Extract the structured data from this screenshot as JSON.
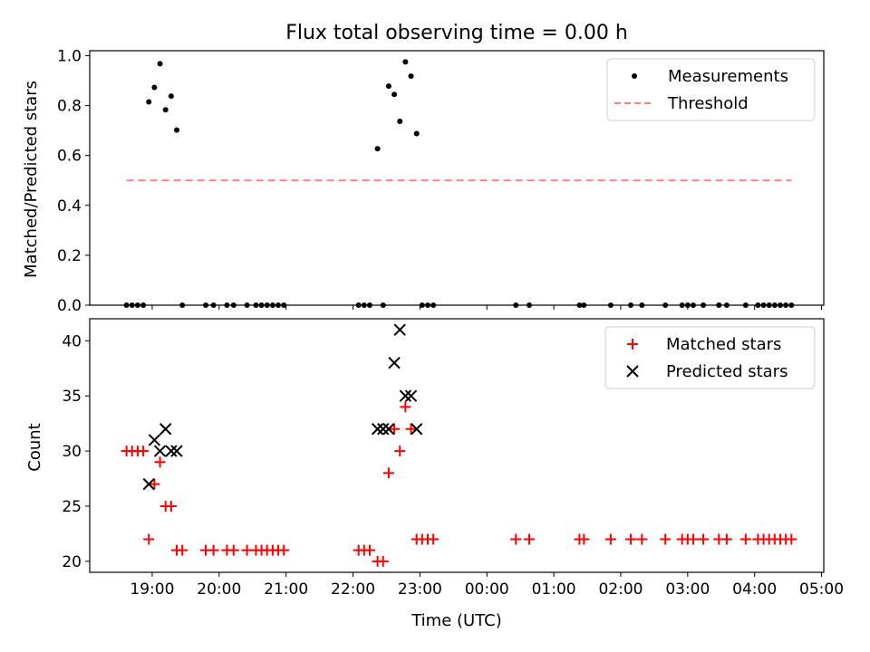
{
  "chart_data": [
    {
      "type": "scatter",
      "title": "Flux total observing time = 0.00 h",
      "xlabel": "",
      "ylabel": "Matched/Predicted stars",
      "ylim": [
        0.0,
        1.02
      ],
      "yticks": [
        0.0,
        0.2,
        0.4,
        0.6,
        0.8,
        1.0
      ],
      "ytick_labels": [
        "0.0",
        "0.2",
        "0.4",
        "0.6",
        "0.8",
        "1.0"
      ],
      "legend_position": "top-right",
      "series": [
        {
          "name": "Measurements",
          "marker": "dot",
          "color": "#000000",
          "points": [
            [
              "18:37",
              0.0
            ],
            [
              "18:42",
              0.0
            ],
            [
              "18:47",
              0.0
            ],
            [
              "18:52",
              0.0
            ],
            [
              "18:57",
              0.815
            ],
            [
              "19:02",
              0.873
            ],
            [
              "19:07",
              0.968
            ],
            [
              "19:12",
              0.783
            ],
            [
              "19:17",
              0.838
            ],
            [
              "19:22",
              0.702
            ],
            [
              "19:27",
              0.0
            ],
            [
              "19:48",
              0.0
            ],
            [
              "19:55",
              0.0
            ],
            [
              "20:07",
              0.0
            ],
            [
              "20:13",
              0.0
            ],
            [
              "20:25",
              0.0
            ],
            [
              "20:33",
              0.0
            ],
            [
              "20:38",
              0.0
            ],
            [
              "20:43",
              0.0
            ],
            [
              "20:48",
              0.0
            ],
            [
              "20:53",
              0.0
            ],
            [
              "20:58",
              0.0
            ],
            [
              "22:05",
              0.0
            ],
            [
              "22:10",
              0.0
            ],
            [
              "22:15",
              0.0
            ],
            [
              "22:22",
              0.627
            ],
            [
              "22:27",
              0.0
            ],
            [
              "22:32",
              0.878
            ],
            [
              "22:37",
              0.845
            ],
            [
              "22:42",
              0.737
            ],
            [
              "22:47",
              0.975
            ],
            [
              "22:52",
              0.918
            ],
            [
              "22:57",
              0.688
            ],
            [
              "23:02",
              0.0
            ],
            [
              "23:07",
              0.0
            ],
            [
              "23:12",
              0.0
            ],
            [
              "00:26",
              0.0
            ],
            [
              "00:38",
              0.0
            ],
            [
              "01:23",
              0.0
            ],
            [
              "01:27",
              0.0
            ],
            [
              "01:51",
              0.0
            ],
            [
              "02:09",
              0.0
            ],
            [
              "02:19",
              0.0
            ],
            [
              "02:40",
              0.0
            ],
            [
              "02:55",
              0.0
            ],
            [
              "03:00",
              0.0
            ],
            [
              "03:05",
              0.0
            ],
            [
              "03:14",
              0.0
            ],
            [
              "03:28",
              0.0
            ],
            [
              "03:35",
              0.0
            ],
            [
              "03:52",
              0.0
            ],
            [
              "04:03",
              0.0
            ],
            [
              "04:08",
              0.0
            ],
            [
              "04:13",
              0.0
            ],
            [
              "04:18",
              0.0
            ],
            [
              "04:23",
              0.0
            ],
            [
              "04:28",
              0.0
            ],
            [
              "04:33",
              0.0
            ]
          ]
        },
        {
          "name": "Threshold",
          "marker": "dashed-line",
          "color": "#ff7f7f",
          "points": [
            [
              "18:37",
              0.5
            ],
            [
              "04:33",
              0.5
            ]
          ]
        }
      ]
    },
    {
      "type": "scatter",
      "title": "",
      "xlabel": "Time (UTC)",
      "ylabel": "Count",
      "ylim": [
        19.0,
        42.0
      ],
      "yticks": [
        20,
        25,
        30,
        35,
        40
      ],
      "ytick_labels": [
        "20",
        "25",
        "30",
        "35",
        "40"
      ],
      "xticks": [
        "19:00",
        "20:00",
        "21:00",
        "22:00",
        "23:00",
        "00:00",
        "01:00",
        "02:00",
        "03:00",
        "04:00",
        "05:00"
      ],
      "legend_position": "top-right",
      "series": [
        {
          "name": "Matched stars",
          "marker": "plus",
          "color": "#ff0000",
          "points": [
            [
              "18:37",
              30
            ],
            [
              "18:42",
              30
            ],
            [
              "18:47",
              30
            ],
            [
              "18:52",
              30
            ],
            [
              "18:57",
              22
            ],
            [
              "19:02",
              27
            ],
            [
              "19:07",
              29
            ],
            [
              "19:12",
              25
            ],
            [
              "19:17",
              25
            ],
            [
              "19:22",
              21
            ],
            [
              "19:27",
              21
            ],
            [
              "19:48",
              21
            ],
            [
              "19:55",
              21
            ],
            [
              "20:07",
              21
            ],
            [
              "20:13",
              21
            ],
            [
              "20:25",
              21
            ],
            [
              "20:33",
              21
            ],
            [
              "20:38",
              21
            ],
            [
              "20:43",
              21
            ],
            [
              "20:48",
              21
            ],
            [
              "20:53",
              21
            ],
            [
              "20:58",
              21
            ],
            [
              "22:05",
              21
            ],
            [
              "22:10",
              21
            ],
            [
              "22:15",
              21
            ],
            [
              "22:22",
              20
            ],
            [
              "22:27",
              20
            ],
            [
              "22:32",
              28
            ],
            [
              "22:37",
              32
            ],
            [
              "22:42",
              30
            ],
            [
              "22:47",
              34
            ],
            [
              "22:52",
              32
            ],
            [
              "22:57",
              22
            ],
            [
              "23:02",
              22
            ],
            [
              "23:07",
              22
            ],
            [
              "23:12",
              22
            ],
            [
              "00:26",
              22
            ],
            [
              "00:38",
              22
            ],
            [
              "01:23",
              22
            ],
            [
              "01:27",
              22
            ],
            [
              "01:51",
              22
            ],
            [
              "02:09",
              22
            ],
            [
              "02:19",
              22
            ],
            [
              "02:40",
              22
            ],
            [
              "02:55",
              22
            ],
            [
              "03:00",
              22
            ],
            [
              "03:05",
              22
            ],
            [
              "03:14",
              22
            ],
            [
              "03:28",
              22
            ],
            [
              "03:35",
              22
            ],
            [
              "03:52",
              22
            ],
            [
              "04:03",
              22
            ],
            [
              "04:08",
              22
            ],
            [
              "04:13",
              22
            ],
            [
              "04:18",
              22
            ],
            [
              "04:23",
              22
            ],
            [
              "04:28",
              22
            ],
            [
              "04:33",
              22
            ]
          ]
        },
        {
          "name": "Predicted stars",
          "marker": "x",
          "color": "#000000",
          "points": [
            [
              "18:57",
              27
            ],
            [
              "19:02",
              31
            ],
            [
              "19:07",
              30
            ],
            [
              "19:12",
              32
            ],
            [
              "19:17",
              30
            ],
            [
              "19:22",
              30
            ],
            [
              "22:22",
              32
            ],
            [
              "22:27",
              32
            ],
            [
              "22:32",
              32
            ],
            [
              "22:37",
              38
            ],
            [
              "22:42",
              41
            ],
            [
              "22:47",
              35
            ],
            [
              "22:52",
              35
            ],
            [
              "22:57",
              32
            ]
          ]
        }
      ]
    }
  ]
}
